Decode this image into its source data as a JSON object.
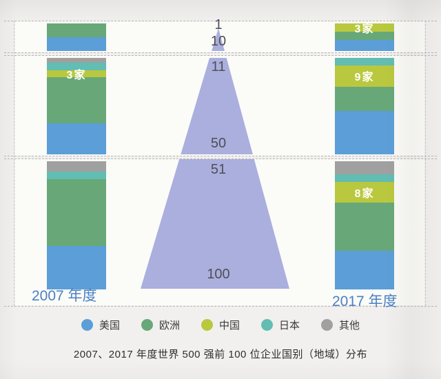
{
  "chart_data": {
    "type": "bar",
    "subtype": "stacked-bars-with-rank-funnel",
    "title": "2007、2017 年度世界 500 强前 100 位企业国别（地域）分布",
    "years": {
      "left": "2007 年度",
      "right": "2017 年度"
    },
    "funnel": {
      "color": "#abafde"
    },
    "stack_order_top_to_bottom": [
      "other",
      "japan",
      "china",
      "europe",
      "usa"
    ],
    "legend": [
      {
        "key": "usa",
        "label": "美国",
        "color": "#5b9ed8"
      },
      {
        "key": "europe",
        "label": "欧洲",
        "color": "#68a878"
      },
      {
        "key": "china",
        "label": "中国",
        "color": "#b9c83e"
      },
      {
        "key": "japan",
        "label": "日本",
        "color": "#62bdb2"
      },
      {
        "key": "other",
        "label": "其他",
        "color": "#a0a0a0"
      }
    ],
    "bands": [
      {
        "rank_top": "1",
        "rank_bottom": "10",
        "total": 10,
        "y2007": {
          "usa": 5,
          "europe": 5,
          "china": 0,
          "japan": 0,
          "other": 0
        },
        "y2017": {
          "usa": 4,
          "europe": 3,
          "china": 3,
          "japan": 0,
          "other": 0
        },
        "label_2007": "",
        "label_2017": "3家"
      },
      {
        "rank_top": "11",
        "rank_bottom": "50",
        "total": 40,
        "y2007": {
          "usa": 13,
          "europe": 19,
          "china": 3,
          "japan": 3,
          "other": 2
        },
        "y2017": {
          "usa": 18,
          "europe": 10,
          "china": 9,
          "japan": 3,
          "other": 0
        },
        "label_2007": "3家",
        "label_2017": "9家"
      },
      {
        "rank_top": "51",
        "rank_bottom": "100",
        "total": 50,
        "y2007": {
          "usa": 17,
          "europe": 26,
          "china": 0,
          "japan": 3,
          "other": 4
        },
        "y2017": {
          "usa": 15,
          "europe": 19,
          "china": 8,
          "japan": 3,
          "other": 5
        },
        "label_2007": "",
        "label_2017": "8家"
      }
    ]
  },
  "colors": {
    "page_bg": "#f1f0ee",
    "band_bg": "#fbfbf8",
    "dashed_line": "#aeaca9",
    "rank_text": "#4f4e57",
    "year_text": "#4b80c2",
    "title_text": "#2e2e2e",
    "bar_label_text": "#ffffff"
  }
}
